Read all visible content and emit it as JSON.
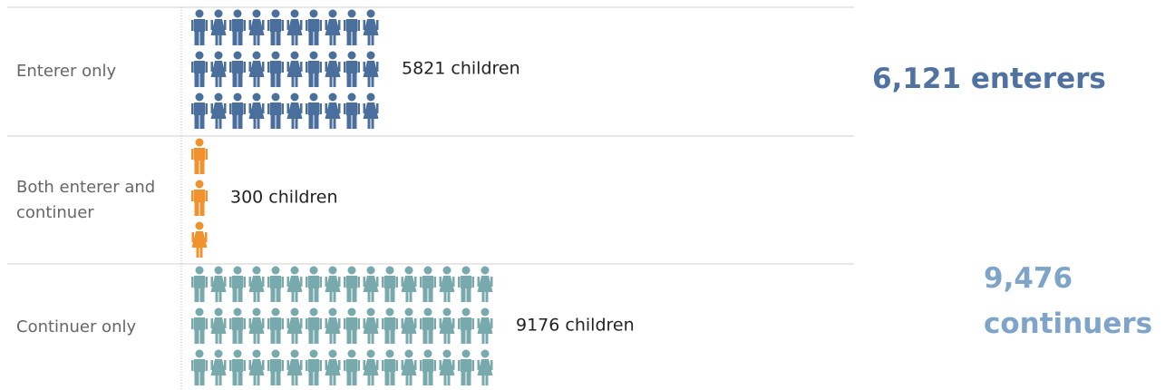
{
  "chart_data": {
    "type": "pictogram",
    "categories": [
      "Enterer only",
      "Both enterer and continuer",
      "Continuer only"
    ],
    "values": [
      5821,
      300,
      9176
    ],
    "value_labels": [
      "5821 children",
      "300 children",
      "9176 children"
    ],
    "colors": [
      "#4a6f9c",
      "#f0922e",
      "#78a9ad"
    ],
    "annotations": [
      {
        "text": "6,121 enterers",
        "color": "#4f72a1"
      },
      {
        "text": "9,476 continuers",
        "color": "#7ea5c9"
      }
    ]
  }
}
